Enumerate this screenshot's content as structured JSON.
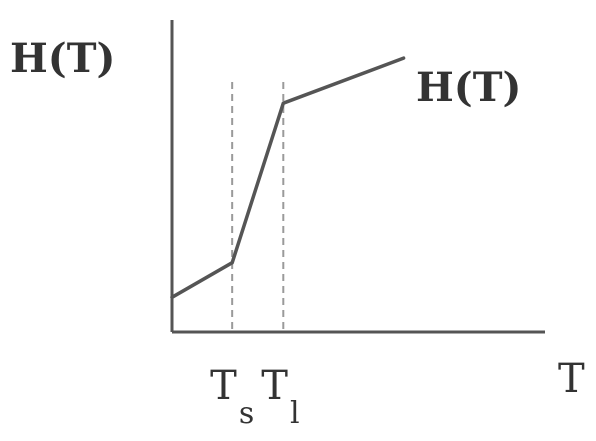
{
  "chart_data": {
    "type": "line",
    "title": "",
    "ylabel": "H(T)",
    "xlabel": "T",
    "series": [
      {
        "name": "H(T)",
        "points": [
          {
            "x": 0,
            "y": 0.5
          },
          {
            "x": 1,
            "y": 1.0
          },
          {
            "x": 1.85,
            "y": 3.3
          },
          {
            "x": 3.85,
            "y": 3.95
          }
        ]
      }
    ],
    "xlim": [
      0,
      6.2
    ],
    "ylim": [
      0,
      4.5
    ],
    "reference_lines": [
      {
        "x": 1,
        "style": "dashed",
        "label_main": "T",
        "label_sub": "s"
      },
      {
        "x": 1.85,
        "style": "dashed",
        "label_main": "T",
        "label_sub": "l"
      }
    ],
    "grid": false,
    "legend": "none",
    "colors": {
      "line": "#555555",
      "axis": "#555555",
      "ref": "#9a9a9a",
      "text": "#333333"
    }
  }
}
